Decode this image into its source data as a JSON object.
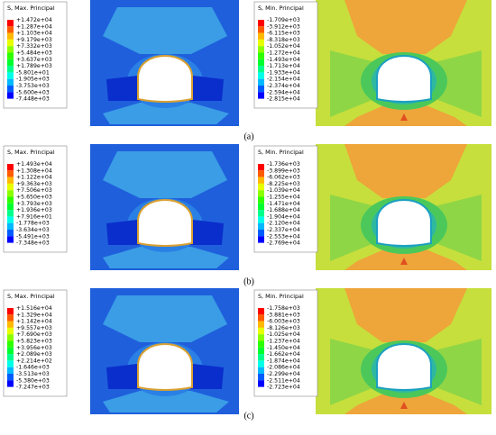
{
  "panels": [
    {
      "label": "(a)",
      "left": {
        "title": "S, Max. Principal",
        "values": [
          "+1.472e+04",
          "+1.287e+04",
          "+1.103e+04",
          "+9.179e+03",
          "+7.332e+03",
          "+5.484e+03",
          "+3.637e+03",
          "+1.789e+03",
          "-5.801e+01",
          "-1.905e+03",
          "-3.753e+03",
          "-5.600e+03",
          "-7.448e+03"
        ]
      },
      "right": {
        "title": "S, Min. Principal",
        "values": [
          "-1.709e+03",
          "-3.912e+03",
          "-6.115e+03",
          "-8.318e+03",
          "-1.052e+04",
          "-1.272e+04",
          "-1.493e+04",
          "-1.713e+04",
          "-1.933e+04",
          "-2.154e+04",
          "-2.374e+04",
          "-2.594e+04",
          "-2.815e+04"
        ]
      }
    },
    {
      "label": "(b)",
      "left": {
        "title": "S, Max. Principal",
        "values": [
          "+1.493e+04",
          "+1.308e+04",
          "+1.122e+04",
          "+9.363e+03",
          "+7.506e+03",
          "+5.650e+03",
          "+3.793e+03",
          "+1.936e+03",
          "+7.916e+01",
          "-1.778e+03",
          "-3.634e+03",
          "-5.491e+03",
          "-7.348e+03"
        ]
      },
      "right": {
        "title": "S, Min. Principal",
        "values": [
          "-1.736e+03",
          "-3.899e+03",
          "-6.062e+03",
          "-8.225e+03",
          "-1.039e+04",
          "-1.255e+04",
          "-1.471e+04",
          "-1.688e+04",
          "-1.904e+04",
          "-2.120e+04",
          "-2.337e+04",
          "-2.553e+04",
          "-2.769e+04"
        ]
      }
    },
    {
      "label": "(c)",
      "left": {
        "title": "S, Max. Principal",
        "values": [
          "+1.516e+04",
          "+1.329e+04",
          "+1.142e+04",
          "+9.557e+03",
          "+7.690e+03",
          "+5.823e+03",
          "+3.956e+03",
          "+2.089e+03",
          "+2.214e+02",
          "-1.646e+03",
          "-3.513e+03",
          "-5.380e+03",
          "-7.247e+03"
        ]
      },
      "right": {
        "title": "S, Min. Principal",
        "values": [
          "-1.758e+03",
          "-3.881e+03",
          "-6.003e+03",
          "-8.126e+03",
          "-1.025e+04",
          "-1.237e+04",
          "-1.450e+04",
          "-1.662e+04",
          "-1.874e+04",
          "-2.086e+04",
          "-2.299e+04",
          "-2.511e+04",
          "-2.723e+04"
        ]
      }
    }
  ]
}
